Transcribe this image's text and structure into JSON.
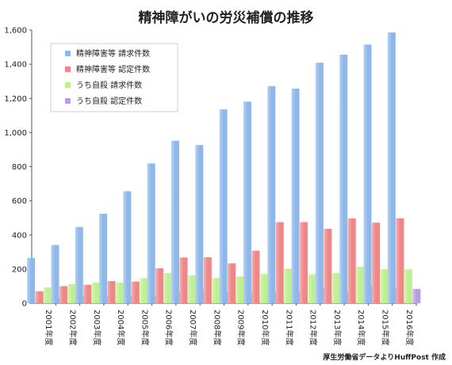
{
  "chart_data": {
    "type": "bar",
    "title": "精神障がいの労災補償の推移",
    "categories": [
      "2001年度",
      "2002年度",
      "2003年度",
      "2004年度",
      "2005年度",
      "2006年度",
      "2007年度",
      "2008年度",
      "2009年度",
      "2010年度",
      "2011年度",
      "2012年度",
      "2013年度",
      "2014年度",
      "2015年度",
      "2016年度"
    ],
    "series": [
      {
        "name": "精神障害等 請求件数",
        "color": "#8fb8ea",
        "values": [
          265,
          341,
          447,
          524,
          656,
          819,
          952,
          927,
          1136,
          1181,
          1272,
          1257,
          1409,
          1456,
          1515,
          1586
        ]
      },
      {
        "name": "精神障害等 認定件数",
        "color": "#f08787",
        "values": [
          70,
          100,
          108,
          130,
          127,
          205,
          268,
          269,
          234,
          308,
          475,
          475,
          436,
          497,
          472,
          498
        ]
      },
      {
        "name": "うち自殺 請求件数",
        "color": "#bdf18e",
        "values": [
          92,
          112,
          122,
          121,
          147,
          176,
          164,
          148,
          157,
          171,
          202,
          169,
          177,
          213,
          199,
          198
        ]
      },
      {
        "name": "うち自殺 認定件数",
        "color": "#b89ee0",
        "values": [
          31,
          43,
          40,
          45,
          42,
          66,
          81,
          66,
          63,
          65,
          66,
          93,
          63,
          99,
          93,
          84
        ]
      }
    ],
    "ylim": [
      0,
      1600
    ],
    "yticks": [
      0,
      200,
      400,
      600,
      800,
      1000,
      1200,
      1400,
      1600
    ],
    "ytick_labels": [
      "0",
      "200",
      "400",
      "600",
      "800",
      "1,000",
      "1,200",
      "1,400",
      "1,600"
    ],
    "grid": false,
    "legend": "top-left"
  },
  "source_note": "厚生労働省データよりHuffPost 作成"
}
